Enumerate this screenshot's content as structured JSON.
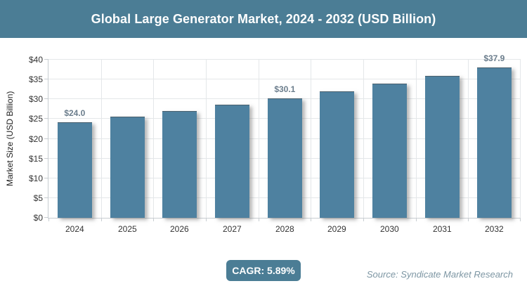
{
  "header": {
    "title": "Global Large Generator Market, 2024 - 2032 (USD Billion)"
  },
  "chart_data": {
    "type": "bar",
    "title": "Global Large Generator Market, 2024 - 2032 (USD Billion)",
    "categories": [
      "2024",
      "2025",
      "2026",
      "2027",
      "2028",
      "2029",
      "2030",
      "2031",
      "2032"
    ],
    "values": [
      24.0,
      25.4,
      26.9,
      28.5,
      30.1,
      31.9,
      33.8,
      35.8,
      37.9
    ],
    "data_labels": [
      "$24.0",
      "",
      "",
      "",
      "$30.1",
      "",
      "",
      "",
      "$37.9"
    ],
    "xlabel": "",
    "ylabel": "Market Size (USD Billion)",
    "ylim": [
      0,
      40
    ],
    "ytick_step": 5,
    "ytick_labels": [
      "$0",
      "$5",
      "$10",
      "$15",
      "$20",
      "$25",
      "$30",
      "$35",
      "$40"
    ],
    "grid": true,
    "legend": "none"
  },
  "footer": {
    "cagr_label": "CAGR: 5.89%",
    "source": "Source: Syndicate Market Research"
  },
  "colors": {
    "header_bg": "#4b7d95",
    "bar_fill": "#4e81a0",
    "badge_bg": "#4b7d95",
    "data_label": "#6b7d8c",
    "source_text": "#7d96a3",
    "gridline": "#e4e7e9",
    "axis_line": "#c8cdd1",
    "tick_text": "#333333"
  }
}
